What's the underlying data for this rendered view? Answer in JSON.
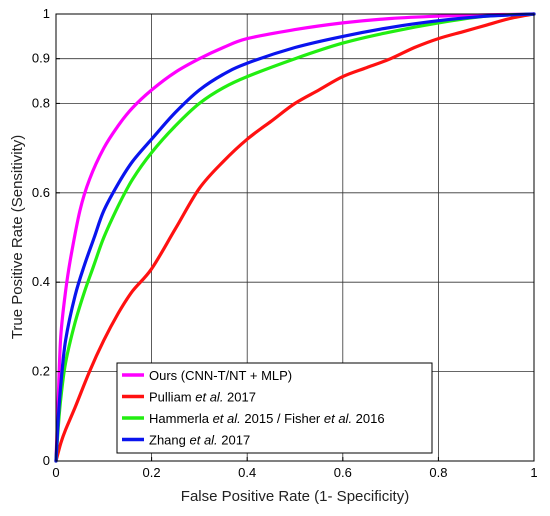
{
  "chart_data": {
    "type": "line",
    "title": "",
    "xlabel": "False Positive Rate (1- Specificity)",
    "ylabel": "True Positive Rate (Sensitivity)",
    "xlim": [
      0,
      1
    ],
    "ylim": [
      0,
      1
    ],
    "x_ticks": [
      0,
      0.2,
      0.4,
      0.6,
      0.8,
      1
    ],
    "x_tick_labels": [
      "0",
      "0.2",
      "0.4",
      "0.6",
      "0.8",
      "1"
    ],
    "y_ticks": [
      0,
      0.2,
      0.4,
      0.6,
      0.8,
      0.9,
      1
    ],
    "y_tick_labels": [
      "0",
      "0.2",
      "0.4",
      "0.6",
      "0.8",
      "0.9",
      "1"
    ],
    "grid": true,
    "legend_position": "bottom-left",
    "series": [
      {
        "name": "Ours (CNN-T/NT + MLP)",
        "legend_parts": [
          {
            "text": "Ours (CNN-T/NT + MLP)",
            "italic": false
          }
        ],
        "color": "#ff00ff",
        "x": [
          0,
          0.005,
          0.01,
          0.02,
          0.03,
          0.05,
          0.07,
          0.1,
          0.13,
          0.16,
          0.2,
          0.25,
          0.3,
          0.35,
          0.4,
          0.5,
          0.6,
          0.7,
          0.8,
          0.9,
          1
        ],
        "y": [
          0,
          0.15,
          0.28,
          0.38,
          0.45,
          0.56,
          0.63,
          0.7,
          0.75,
          0.79,
          0.83,
          0.87,
          0.9,
          0.925,
          0.945,
          0.965,
          0.98,
          0.99,
          0.995,
          0.998,
          1
        ]
      },
      {
        "name": "Pulliam et al. 2017",
        "legend_parts": [
          {
            "text": "Pulliam ",
            "italic": false
          },
          {
            "text": "et al.",
            "italic": true
          },
          {
            "text": "  2017",
            "italic": false
          }
        ],
        "color": "#ff1111",
        "x": [
          0,
          0.01,
          0.02,
          0.04,
          0.07,
          0.1,
          0.13,
          0.16,
          0.2,
          0.25,
          0.3,
          0.35,
          0.4,
          0.45,
          0.5,
          0.55,
          0.6,
          0.65,
          0.7,
          0.75,
          0.8,
          0.85,
          0.9,
          0.95,
          1
        ],
        "y": [
          0,
          0.04,
          0.07,
          0.12,
          0.2,
          0.27,
          0.33,
          0.38,
          0.43,
          0.52,
          0.61,
          0.67,
          0.72,
          0.76,
          0.8,
          0.83,
          0.86,
          0.88,
          0.9,
          0.925,
          0.945,
          0.96,
          0.975,
          0.99,
          1
        ]
      },
      {
        "name": "Hammerla et al. 2015 / Fisher et al. 2016",
        "legend_parts": [
          {
            "text": "Hammerla ",
            "italic": false
          },
          {
            "text": "et al.",
            "italic": true
          },
          {
            "text": "  2015 / Fisher ",
            "italic": false
          },
          {
            "text": "et al.",
            "italic": true
          },
          {
            "text": "  2016",
            "italic": false
          }
        ],
        "color": "#22ee11",
        "x": [
          0,
          0.005,
          0.01,
          0.02,
          0.04,
          0.06,
          0.08,
          0.1,
          0.13,
          0.16,
          0.2,
          0.25,
          0.3,
          0.35,
          0.4,
          0.5,
          0.6,
          0.7,
          0.8,
          0.9,
          1
        ],
        "y": [
          0,
          0.08,
          0.14,
          0.22,
          0.31,
          0.38,
          0.44,
          0.5,
          0.57,
          0.63,
          0.69,
          0.75,
          0.8,
          0.835,
          0.86,
          0.9,
          0.935,
          0.96,
          0.98,
          0.995,
          1
        ]
      },
      {
        "name": "Zhang et al. 2017",
        "legend_parts": [
          {
            "text": "Zhang ",
            "italic": false
          },
          {
            "text": "et al.",
            "italic": true
          },
          {
            "text": "  2017",
            "italic": false
          }
        ],
        "color": "#0a14ee",
        "x": [
          0,
          0.005,
          0.01,
          0.02,
          0.04,
          0.06,
          0.08,
          0.1,
          0.13,
          0.16,
          0.2,
          0.25,
          0.3,
          0.35,
          0.4,
          0.5,
          0.6,
          0.7,
          0.8,
          0.9,
          1
        ],
        "y": [
          0,
          0.1,
          0.17,
          0.27,
          0.37,
          0.44,
          0.5,
          0.56,
          0.62,
          0.67,
          0.72,
          0.78,
          0.83,
          0.865,
          0.89,
          0.925,
          0.95,
          0.97,
          0.985,
          0.995,
          1
        ]
      }
    ]
  }
}
